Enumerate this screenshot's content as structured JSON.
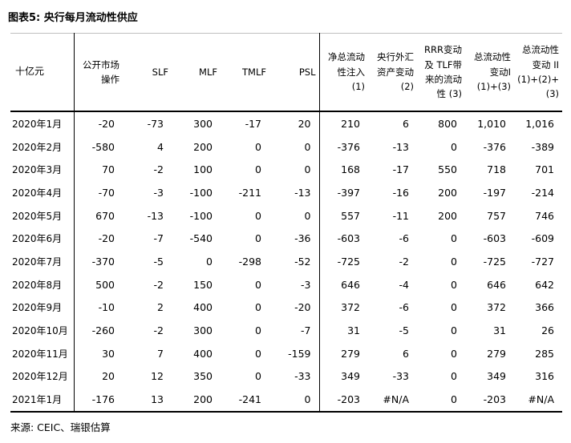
{
  "page": {
    "title": "图表5: 央行每月流动性供应",
    "source_note": "来源: CEIC、瑞银估算"
  },
  "chart_data": {
    "type": "table",
    "title": "图表5: 央行每月流动性供应",
    "unit": "十亿元",
    "header_display": [
      "十亿元",
      "公开市场\n操作",
      "SLF",
      "MLF",
      "TMLF",
      "PSL",
      "净总流动\n性注入\n(1)",
      "央行外汇\n资产变动\n(2)",
      "RRR变动\n及 TLF带\n来的流动\n性 (3)",
      "总流动性\n变动I\n(1)+(3)",
      "总流动性\n变动 II\n(1)+(2)+\n(3)"
    ],
    "columns": [
      "公开市场操作",
      "SLF",
      "MLF",
      "TMLF",
      "PSL",
      "净总流动性注入 (1)",
      "央行外汇资产变动 (2)",
      "RRR变动及 TLF带来的流动性 (3)",
      "总流动性变动I (1)+(3)",
      "总流动性变动 II (1)+(2)+(3)"
    ],
    "rows": [
      {
        "month": "2020年1月",
        "values": [
          "-20",
          "-73",
          "300",
          "-17",
          "20",
          "210",
          "6",
          "800",
          "1,010",
          "1,016"
        ]
      },
      {
        "month": "2020年2月",
        "values": [
          "-580",
          "4",
          "200",
          "0",
          "0",
          "-376",
          "-13",
          "0",
          "-376",
          "-389"
        ]
      },
      {
        "month": "2020年3月",
        "values": [
          "70",
          "-2",
          "100",
          "0",
          "0",
          "168",
          "-17",
          "550",
          "718",
          "701"
        ]
      },
      {
        "month": "2020年4月",
        "values": [
          "-70",
          "-3",
          "-100",
          "-211",
          "-13",
          "-397",
          "-16",
          "200",
          "-197",
          "-214"
        ]
      },
      {
        "month": "2020年5月",
        "values": [
          "670",
          "-13",
          "-100",
          "0",
          "0",
          "557",
          "-11",
          "200",
          "757",
          "746"
        ]
      },
      {
        "month": "2020年6月",
        "values": [
          "-20",
          "-7",
          "-540",
          "0",
          "-36",
          "-603",
          "-6",
          "0",
          "-603",
          "-609"
        ]
      },
      {
        "month": "2020年7月",
        "values": [
          "-370",
          "-5",
          "0",
          "-298",
          "-52",
          "-725",
          "-2",
          "0",
          "-725",
          "-727"
        ]
      },
      {
        "month": "2020年8月",
        "values": [
          "500",
          "-2",
          "150",
          "0",
          "-3",
          "646",
          "-4",
          "0",
          "646",
          "642"
        ]
      },
      {
        "month": "2020年9月",
        "values": [
          "-10",
          "2",
          "400",
          "0",
          "-20",
          "372",
          "-6",
          "0",
          "372",
          "366"
        ]
      },
      {
        "month": "2020年10月",
        "values": [
          "-260",
          "-2",
          "300",
          "0",
          "-7",
          "31",
          "-5",
          "0",
          "31",
          "26"
        ]
      },
      {
        "month": "2020年11月",
        "values": [
          "30",
          "7",
          "400",
          "0",
          "-159",
          "279",
          "6",
          "0",
          "279",
          "285"
        ]
      },
      {
        "month": "2020年12月",
        "values": [
          "20",
          "12",
          "350",
          "0",
          "-33",
          "349",
          "-33",
          "0",
          "349",
          "316"
        ]
      },
      {
        "month": "2021年1月",
        "values": [
          "-176",
          "13",
          "200",
          "-241",
          "0",
          "-203",
          "#N/A",
          "0",
          "-203",
          "#N/A"
        ]
      }
    ],
    "source": "来源: CEIC、瑞银估算"
  },
  "colors": {
    "background": "#ffffff",
    "text": "#000000",
    "rule_light": "#bfbfbf",
    "rule_dark": "#000000"
  }
}
